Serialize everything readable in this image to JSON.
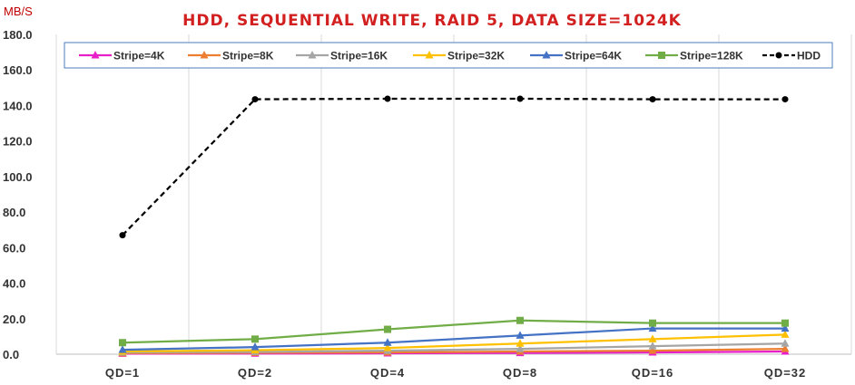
{
  "chart_data": {
    "type": "line",
    "title": "HDD, SEQUENTIAL WRITE, RAID 5, DATA SIZE=1024K",
    "ylabel": "MB/S",
    "xlabel": "",
    "categories": [
      "QD=1",
      "QD=2",
      "QD=4",
      "QD=8",
      "QD=16",
      "QD=32"
    ],
    "ylim": [
      0,
      180
    ],
    "ytick_labels": [
      "0.0",
      "20.0",
      "40.0",
      "60.0",
      "80.0",
      "100.0",
      "120.0",
      "140.0",
      "160.0",
      "180.0"
    ],
    "grid": "vertical",
    "legend_position": "top",
    "series": [
      {
        "name": "Stripe=4K",
        "color": "#e61fc8",
        "marker": "triangle",
        "dash": false,
        "values": [
          0.3,
          0.4,
          0.5,
          0.7,
          1.0,
          1.5
        ]
      },
      {
        "name": "Stripe=8K",
        "color": "#ed7d31",
        "marker": "triangle",
        "dash": false,
        "values": [
          0.6,
          0.8,
          1.0,
          1.5,
          2.0,
          3.0
        ]
      },
      {
        "name": "Stripe=16K",
        "color": "#a5a5a5",
        "marker": "triangle",
        "dash": false,
        "values": [
          1.0,
          1.3,
          2.0,
          3.0,
          4.5,
          6.0
        ]
      },
      {
        "name": "Stripe=32K",
        "color": "#ffc000",
        "marker": "triangle",
        "dash": false,
        "values": [
          1.5,
          2.2,
          3.5,
          6.0,
          8.5,
          11.0
        ]
      },
      {
        "name": "Stripe=64K",
        "color": "#4472c4",
        "marker": "triangle",
        "dash": false,
        "values": [
          2.5,
          4.0,
          6.5,
          10.5,
          14.5,
          14.5
        ]
      },
      {
        "name": "Stripe=128K",
        "color": "#70ad47",
        "marker": "square",
        "dash": false,
        "values": [
          6.5,
          8.5,
          14.0,
          19.0,
          17.5,
          17.5
        ]
      },
      {
        "name": "HDD",
        "color": "#000000",
        "marker": "circle",
        "dash": true,
        "values": [
          67.0,
          143.5,
          143.8,
          143.8,
          143.5,
          143.5
        ]
      }
    ]
  }
}
